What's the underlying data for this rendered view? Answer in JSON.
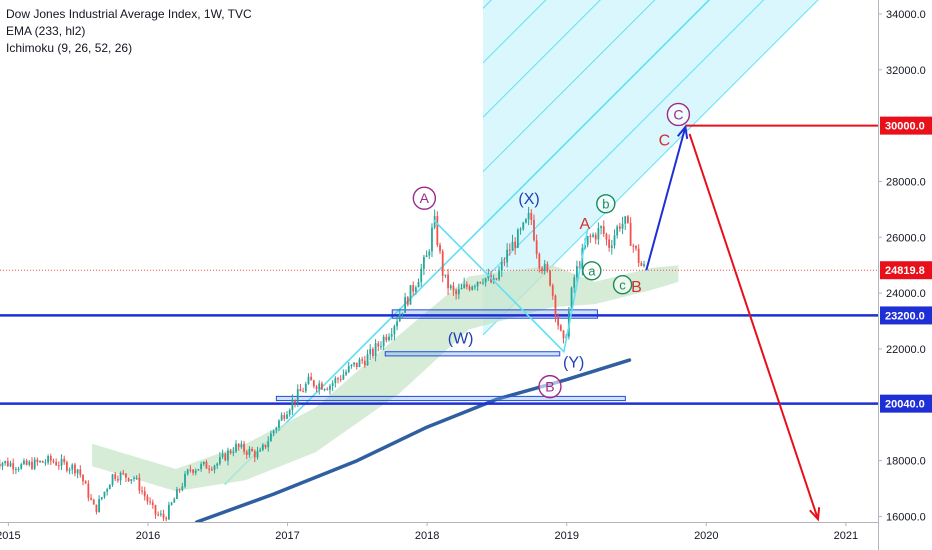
{
  "legend": {
    "title": "Dow Jones Industrial Average Index, 1W, TVC",
    "ema": "EMA (233, hl2)",
    "ichimoku": "Ichimoku (9, 26, 52, 26)"
  },
  "colors": {
    "up": "#26a69a",
    "down": "#ef5350",
    "ema": "#2f5f9e",
    "channel_fill": "#ccf4fb",
    "channel_line": "#5fe0f5",
    "horizontal": "#1f2fd6",
    "target": "#e8101a",
    "up_arrow": "#1f2fd6",
    "down_arrow": "#e8101a",
    "cloud": "#c8e6c9",
    "wave_purple": "#9c2a8c",
    "wave_blue": "#1f3fb4",
    "wave_green": "#1b8a5a",
    "wave_red": "#d32f2f"
  },
  "chart_data": {
    "type": "candlestick",
    "ylim": [
      15800,
      34500
    ],
    "y_ticks": [
      "16000.0",
      "18000.0",
      "20000.0",
      "22000.0",
      "24000.0",
      "26000.0",
      "28000.0",
      "30000.0",
      "32000.0",
      "34000.0"
    ],
    "x_ticks": [
      {
        "label": "2015",
        "year": 2015.0
      },
      {
        "label": "2016",
        "year": 2016.0
      },
      {
        "label": "2017",
        "year": 2017.0
      },
      {
        "label": "2018",
        "year": 2018.0
      },
      {
        "label": "2019",
        "year": 2019.0
      },
      {
        "label": "2020",
        "year": 2020.0
      },
      {
        "label": "2021",
        "year": 2021.0
      }
    ],
    "price_labels": [
      {
        "text": "34000.0",
        "price": 34000,
        "style": "tick"
      },
      {
        "text": "30000.0",
        "price": 30000,
        "style": "red"
      },
      {
        "text": "24819.8",
        "price": 24819.8,
        "style": "red"
      },
      {
        "text": "23200.0",
        "price": 23200,
        "style": "blue"
      },
      {
        "text": "20040.0",
        "price": 20040,
        "style": "blue"
      }
    ],
    "last_price": 24819.8,
    "horizontal_levels": [
      23200,
      20040
    ],
    "target_level": 30000,
    "price_path": [
      [
        2014.9,
        18000
      ],
      [
        2015.1,
        17800
      ],
      [
        2015.3,
        18000
      ],
      [
        2015.5,
        17700
      ],
      [
        2015.62,
        16200
      ],
      [
        2015.75,
        17500
      ],
      [
        2015.9,
        17400
      ],
      [
        2016.05,
        16100
      ],
      [
        2016.12,
        15950
      ],
      [
        2016.3,
        17700
      ],
      [
        2016.5,
        17900
      ],
      [
        2016.62,
        18500
      ],
      [
        2016.8,
        18200
      ],
      [
        2016.9,
        19100
      ],
      [
        2017.0,
        19900
      ],
      [
        2017.15,
        20800
      ],
      [
        2017.3,
        20700
      ],
      [
        2017.45,
        21300
      ],
      [
        2017.6,
        21800
      ],
      [
        2017.75,
        22800
      ],
      [
        2017.9,
        24200
      ],
      [
        2018.0,
        25300
      ],
      [
        2018.05,
        26600
      ],
      [
        2018.12,
        24500
      ],
      [
        2018.2,
        23900
      ],
      [
        2018.3,
        24300
      ],
      [
        2018.4,
        24600
      ],
      [
        2018.48,
        24300
      ],
      [
        2018.58,
        25500
      ],
      [
        2018.68,
        26200
      ],
      [
        2018.74,
        26800
      ],
      [
        2018.8,
        25200
      ],
      [
        2018.88,
        24500
      ],
      [
        2018.95,
        22600
      ],
      [
        2018.98,
        22100
      ],
      [
        2019.05,
        24500
      ],
      [
        2019.15,
        25900
      ],
      [
        2019.25,
        26300
      ],
      [
        2019.3,
        25700
      ],
      [
        2019.38,
        26500
      ],
      [
        2019.42,
        26500
      ],
      [
        2019.47,
        25800
      ],
      [
        2019.53,
        25000
      ],
      [
        2019.57,
        24819.8
      ]
    ],
    "ema_233": [
      [
        2016.35,
        15800
      ],
      [
        2016.9,
        16800
      ],
      [
        2017.5,
        18000
      ],
      [
        2018.0,
        19200
      ],
      [
        2018.5,
        20200
      ],
      [
        2019.0,
        20900
      ],
      [
        2019.45,
        21600
      ]
    ],
    "ichimoku_cloud_top": [
      [
        2015.6,
        18600
      ],
      [
        2016.2,
        17700
      ],
      [
        2016.7,
        18600
      ],
      [
        2017.2,
        19900
      ],
      [
        2017.8,
        22500
      ],
      [
        2018.3,
        24600
      ],
      [
        2018.9,
        25000
      ],
      [
        2019.2,
        24400
      ],
      [
        2019.6,
        24900
      ],
      [
        2019.8,
        25000
      ]
    ],
    "ichimoku_cloud_bottom": [
      [
        2015.6,
        17800
      ],
      [
        2016.2,
        16900
      ],
      [
        2016.7,
        17300
      ],
      [
        2017.2,
        18300
      ],
      [
        2017.8,
        20400
      ],
      [
        2018.3,
        22700
      ],
      [
        2018.9,
        23500
      ],
      [
        2019.2,
        23600
      ],
      [
        2019.6,
        24100
      ],
      [
        2019.8,
        24400
      ]
    ],
    "channel": {
      "anchor": [
        2017.0,
        19400
      ],
      "slope_per_year": 5000,
      "spacing": 1950,
      "offsets": [
        -2,
        -1,
        0,
        1,
        2,
        3,
        4,
        5
      ],
      "x_range": [
        2018.4,
        2021.1
      ]
    },
    "projection_up": [
      [
        2019.57,
        24819.8
      ],
      [
        2019.85,
        29950
      ]
    ],
    "projection_down": [
      [
        2019.88,
        29700
      ],
      [
        2020.8,
        15900
      ]
    ],
    "triangle": [
      [
        2018.05,
        26600
      ],
      [
        2018.98,
        21900
      ],
      [
        2019.15,
        26300
      ]
    ],
    "boxes": [
      {
        "x0": 2017.75,
        "x1": 2019.22,
        "p0": 23100,
        "p1": 23400
      },
      {
        "x0": 2017.7,
        "x1": 2018.95,
        "p0": 21750,
        "p1": 21900
      },
      {
        "x0": 2016.92,
        "x1": 2019.42,
        "p0": 20150,
        "p1": 20300
      }
    ],
    "waves": [
      {
        "label": "A",
        "year": 2017.98,
        "price": 27400,
        "style": "purple-circle"
      },
      {
        "label": "(X)",
        "year": 2018.73,
        "price": 27400,
        "style": "blue"
      },
      {
        "label": "b",
        "year": 2019.28,
        "price": 27200,
        "style": "green-circle"
      },
      {
        "label": "A",
        "year": 2019.13,
        "price": 26500,
        "style": "red"
      },
      {
        "label": "a",
        "year": 2019.18,
        "price": 24800,
        "style": "green-circle"
      },
      {
        "label": "c",
        "year": 2019.4,
        "price": 24300,
        "style": "green-circle"
      },
      {
        "label": "B",
        "year": 2019.5,
        "price": 24250,
        "style": "red"
      },
      {
        "label": "(W)",
        "year": 2018.24,
        "price": 22400,
        "style": "blue"
      },
      {
        "label": "(Y)",
        "year": 2019.05,
        "price": 21550,
        "style": "blue"
      },
      {
        "label": "B",
        "year": 2018.88,
        "price": 20650,
        "style": "purple-circle"
      },
      {
        "label": "C",
        "year": 2019.8,
        "price": 30400,
        "style": "purple-circle"
      },
      {
        "label": "C",
        "year": 2019.7,
        "price": 29500,
        "style": "red"
      }
    ]
  }
}
